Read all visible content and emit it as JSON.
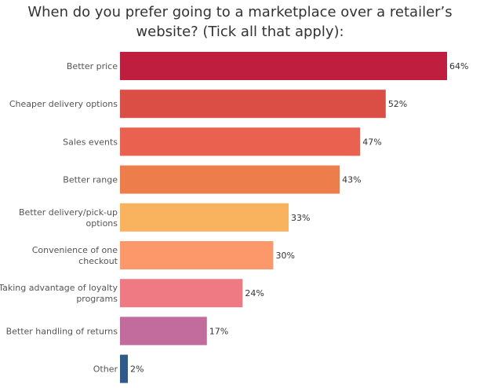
{
  "chart_data": {
    "type": "bar",
    "orientation": "horizontal",
    "title_lines": [
      "When do you prefer going to a marketplace over a retailer’s",
      "website? (Tick all that apply):"
    ],
    "unit": "%",
    "xlim": [
      0,
      70
    ],
    "grid": false,
    "categories": [
      [
        "Better price"
      ],
      [
        "Cheaper delivery options"
      ],
      [
        "Sales events"
      ],
      [
        "Better range"
      ],
      [
        "Better delivery/pick-up",
        "options"
      ],
      [
        "Convenience of one",
        "checkout"
      ],
      [
        "Taking advantage of loyalty",
        "programs"
      ],
      [
        "Better handling of returns"
      ],
      [
        "Other"
      ]
    ],
    "values": [
      64,
      52,
      47,
      43,
      33,
      30,
      24,
      17,
      2
    ],
    "value_labels": [
      "64%",
      "52%",
      "47%",
      "43%",
      "33%",
      "30%",
      "24%",
      "17%",
      "2%"
    ],
    "colors": [
      "#bf1e3f",
      "#db4e46",
      "#ea6150",
      "#ee7d4c",
      "#f9b35e",
      "#fd986b",
      "#ef7a83",
      "#c26b9d",
      "#2f5b8c"
    ]
  }
}
